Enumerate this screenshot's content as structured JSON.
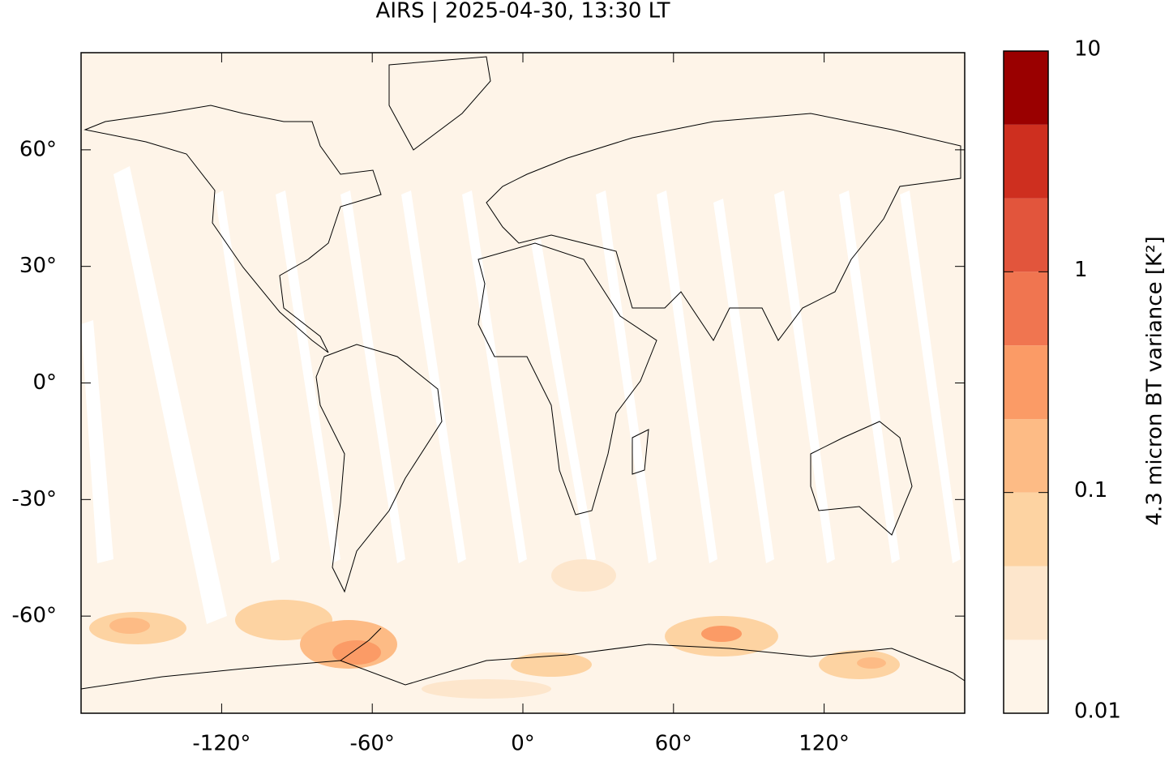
{
  "chart_data": {
    "type": "map",
    "title": "AIRS | 2025-04-30, 13:30 LT",
    "xlim": [
      -176,
      176
    ],
    "ylim": [
      -85,
      85
    ],
    "xticks": [
      {
        "value": -120,
        "label": "-120°"
      },
      {
        "value": -60,
        "label": "-60°"
      },
      {
        "value": 0,
        "label": "0°"
      },
      {
        "value": 60,
        "label": "60°"
      },
      {
        "value": 120,
        "label": "120°"
      }
    ],
    "yticks": [
      {
        "value": -60,
        "label": "-60°"
      },
      {
        "value": -30,
        "label": "-30°"
      },
      {
        "value": 0,
        "label": "0°"
      },
      {
        "value": 30,
        "label": "30°"
      },
      {
        "value": 60,
        "label": "60°"
      }
    ],
    "colorbar": {
      "label": "4.3 micron BT variance [K²]",
      "log": true,
      "lim": [
        0.01,
        10
      ],
      "ticks": [
        0.01,
        0.1,
        1,
        10
      ],
      "levels": [
        0.01,
        0.0215,
        0.0464,
        0.1,
        0.215,
        0.464,
        1,
        2.15,
        4.64,
        10
      ],
      "colors": [
        "#fef4e8",
        "#fde6cc",
        "#fdd3a2",
        "#fdbb85",
        "#fb9b66",
        "#f07550",
        "#e2553c",
        "#ce2f1f",
        "#9a0000"
      ]
    }
  }
}
